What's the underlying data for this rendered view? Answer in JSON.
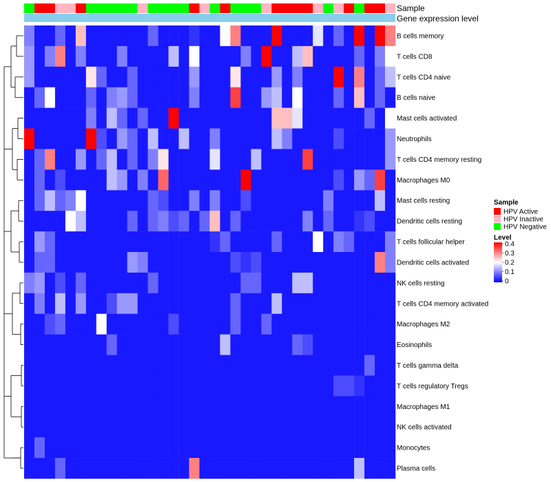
{
  "chart_data": {
    "type": "heatmap",
    "annotation_tracks": [
      "Sample",
      "Gene expression level"
    ],
    "rows": [
      "B cells memory",
      "T cells CD8",
      "T cells CD4 naive",
      "B cells naive",
      "Mast cells activated",
      "Neutrophils",
      "T cells CD4 memory resting",
      "Macrophages M0",
      "Mast cells resting",
      "Dendritic cells resting",
      "T cells follicular helper",
      "Dendritic cells activated",
      "NK cells resting",
      "T cells CD4 memory activated",
      "Macrophages M2",
      "Eosinophils",
      "T cells gamma delta",
      "T cells regulatory  Tregs",
      "Macrophages M1",
      "NK cells activated",
      "Monocytes",
      "Plasma cells"
    ],
    "column_count": 36,
    "sample_groups": [
      "HPV Negative",
      "HPV Active",
      "HPV Active",
      "HPV Inactive",
      "HPV Inactive",
      "HPV Active",
      "HPV Negative",
      "HPV Negative",
      "HPV Negative",
      "HPV Negative",
      "HPV Negative",
      "HPV Inactive",
      "HPV Negative",
      "HPV Negative",
      "HPV Negative",
      "HPV Negative",
      "HPV Active",
      "HPV Inactive",
      "HPV Negative",
      "HPV Active",
      "HPV Negative",
      "HPV Negative",
      "HPV Negative",
      "HPV Inactive",
      "HPV Active",
      "HPV Active",
      "HPV Active",
      "HPV Active",
      "HPV Inactive",
      "HPV Negative",
      "HPV Inactive",
      "HPV Active",
      "HPV Negative",
      "HPV Active",
      "HPV Active",
      "HPV Inactive"
    ],
    "values": [
      [
        0.1,
        0.02,
        0.02,
        0.08,
        0.02,
        0.25,
        0.02,
        0.02,
        0.02,
        0.02,
        0.02,
        0.02,
        0.08,
        0.02,
        0.02,
        0.02,
        0.04,
        0.02,
        0.02,
        0.2,
        0.3,
        0.02,
        0.02,
        0.02,
        0.4,
        0.02,
        0.02,
        0.02,
        0.18,
        0.02,
        0.08,
        0.02,
        0.4,
        0.02,
        0.4,
        0.3
      ],
      [
        0.12,
        0.02,
        0.1,
        0.3,
        0.02,
        0.1,
        0.02,
        0.02,
        0.02,
        0.1,
        0.02,
        0.02,
        0.02,
        0.02,
        0.15,
        0.02,
        0.2,
        0.02,
        0.02,
        0.02,
        0.02,
        0.1,
        0.02,
        0.4,
        0.02,
        0.02,
        0.15,
        0.25,
        0.02,
        0.02,
        0.02,
        0.02,
        0.08,
        0.02,
        0.1,
        0.2
      ],
      [
        0.12,
        0.02,
        0.02,
        0.02,
        0.02,
        0.02,
        0.22,
        0.08,
        0.02,
        0.02,
        0.08,
        0.02,
        0.02,
        0.02,
        0.02,
        0.02,
        0.12,
        0.02,
        0.02,
        0.02,
        0.22,
        0.02,
        0.02,
        0.02,
        0.12,
        0.02,
        0.1,
        0.02,
        0.02,
        0.02,
        0.4,
        0.02,
        0.3,
        0.02,
        0.08,
        0.15
      ],
      [
        0.02,
        0.08,
        0.2,
        0.02,
        0.02,
        0.02,
        0.08,
        0.02,
        0.1,
        0.12,
        0.08,
        0.02,
        0.02,
        0.02,
        0.02,
        0.02,
        0.1,
        0.02,
        0.02,
        0.02,
        0.35,
        0.02,
        0.02,
        0.12,
        0.15,
        0.02,
        0.2,
        0.02,
        0.02,
        0.02,
        0.08,
        0.02,
        0.25,
        0.02,
        0.08,
        0.02
      ],
      [
        0.02,
        0.02,
        0.02,
        0.02,
        0.02,
        0.02,
        0.1,
        0.02,
        0.15,
        0.08,
        0.02,
        0.08,
        0.02,
        0.02,
        0.4,
        0.02,
        0.02,
        0.02,
        0.02,
        0.02,
        0.02,
        0.02,
        0.02,
        0.02,
        0.25,
        0.25,
        0.18,
        0.02,
        0.02,
        0.02,
        0.02,
        0.02,
        0.02,
        0.08,
        0.02,
        0.2
      ],
      [
        0.4,
        0.02,
        0.02,
        0.02,
        0.02,
        0.02,
        0.4,
        0.06,
        0.02,
        0.12,
        0.08,
        0.02,
        0.15,
        0.02,
        0.02,
        0.15,
        0.02,
        0.02,
        0.1,
        0.02,
        0.02,
        0.02,
        0.02,
        0.02,
        0.15,
        0.1,
        0.02,
        0.02,
        0.02,
        0.02,
        0.06,
        0.02,
        0.02,
        0.02,
        0.02,
        0.12
      ],
      [
        0.02,
        0.08,
        0.3,
        0.02,
        0.02,
        0.12,
        0.02,
        0.08,
        0.15,
        0.02,
        0.08,
        0.02,
        0.1,
        0.22,
        0.02,
        0.02,
        0.02,
        0.02,
        0.18,
        0.02,
        0.02,
        0.02,
        0.15,
        0.02,
        0.02,
        0.02,
        0.02,
        0.35,
        0.02,
        0.02,
        0.02,
        0.02,
        0.02,
        0.02,
        0.02,
        0.12
      ],
      [
        0.02,
        0.08,
        0.02,
        0.06,
        0.02,
        0.02,
        0.02,
        0.02,
        0.15,
        0.12,
        0.02,
        0.1,
        0.02,
        0.32,
        0.02,
        0.02,
        0.02,
        0.02,
        0.02,
        0.02,
        0.02,
        0.4,
        0.02,
        0.02,
        0.02,
        0.02,
        0.02,
        0.02,
        0.02,
        0.02,
        0.06,
        0.02,
        0.12,
        0.08,
        0.35,
        0.02
      ],
      [
        0.02,
        0.08,
        0.15,
        0.08,
        0.1,
        0.2,
        0.02,
        0.02,
        0.02,
        0.02,
        0.02,
        0.02,
        0.08,
        0.06,
        0.02,
        0.02,
        0.1,
        0.02,
        0.1,
        0.02,
        0.02,
        0.06,
        0.02,
        0.02,
        0.02,
        0.02,
        0.02,
        0.02,
        0.02,
        0.1,
        0.02,
        0.02,
        0.02,
        0.02,
        0.15,
        0.02
      ],
      [
        0.02,
        0.02,
        0.02,
        0.02,
        0.2,
        0.15,
        0.02,
        0.02,
        0.02,
        0.02,
        0.08,
        0.02,
        0.08,
        0.1,
        0.06,
        0.08,
        0.02,
        0.08,
        0.25,
        0.02,
        0.08,
        0.02,
        0.02,
        0.02,
        0.02,
        0.02,
        0.02,
        0.1,
        0.02,
        0.08,
        0.02,
        0.02,
        0.04,
        0.06,
        0.02,
        0.02
      ],
      [
        0.02,
        0.12,
        0.08,
        0.02,
        0.02,
        0.02,
        0.02,
        0.02,
        0.02,
        0.02,
        0.02,
        0.02,
        0.02,
        0.02,
        0.02,
        0.02,
        0.02,
        0.02,
        0.04,
        0.08,
        0.02,
        0.02,
        0.02,
        0.02,
        0.08,
        0.02,
        0.02,
        0.02,
        0.2,
        0.02,
        0.1,
        0.08,
        0.02,
        0.02,
        0.02,
        0.1
      ],
      [
        0.02,
        0.08,
        0.08,
        0.02,
        0.02,
        0.02,
        0.02,
        0.02,
        0.02,
        0.02,
        0.12,
        0.1,
        0.02,
        0.02,
        0.02,
        0.02,
        0.02,
        0.02,
        0.02,
        0.02,
        0.06,
        0.04,
        0.06,
        0.02,
        0.02,
        0.02,
        0.02,
        0.02,
        0.02,
        0.02,
        0.02,
        0.02,
        0.02,
        0.02,
        0.3,
        0.1
      ],
      [
        0.1,
        0.12,
        0.02,
        0.06,
        0.02,
        0.08,
        0.02,
        0.02,
        0.02,
        0.02,
        0.02,
        0.02,
        0.08,
        0.02,
        0.02,
        0.02,
        0.02,
        0.02,
        0.02,
        0.02,
        0.02,
        0.08,
        0.08,
        0.02,
        0.02,
        0.02,
        0.15,
        0.15,
        0.02,
        0.02,
        0.02,
        0.02,
        0.02,
        0.02,
        0.02,
        0.02
      ],
      [
        0.02,
        0.1,
        0.02,
        0.15,
        0.02,
        0.12,
        0.02,
        0.02,
        0.06,
        0.12,
        0.12,
        0.02,
        0.02,
        0.02,
        0.02,
        0.02,
        0.02,
        0.02,
        0.02,
        0.02,
        0.08,
        0.02,
        0.02,
        0.02,
        0.15,
        0.02,
        0.02,
        0.02,
        0.02,
        0.02,
        0.02,
        0.02,
        0.02,
        0.02,
        0.02,
        0.02
      ],
      [
        0.02,
        0.02,
        0.06,
        0.08,
        0.02,
        0.02,
        0.02,
        0.2,
        0.02,
        0.02,
        0.02,
        0.02,
        0.02,
        0.02,
        0.06,
        0.02,
        0.02,
        0.02,
        0.02,
        0.02,
        0.08,
        0.02,
        0.02,
        0.08,
        0.02,
        0.02,
        0.02,
        0.02,
        0.02,
        0.02,
        0.02,
        0.02,
        0.02,
        0.02,
        0.02,
        0.02
      ],
      [
        0.02,
        0.02,
        0.02,
        0.02,
        0.02,
        0.02,
        0.02,
        0.02,
        0.08,
        0.02,
        0.02,
        0.02,
        0.02,
        0.02,
        0.02,
        0.02,
        0.02,
        0.02,
        0.02,
        0.15,
        0.02,
        0.02,
        0.02,
        0.02,
        0.02,
        0.02,
        0.08,
        0.06,
        0.02,
        0.02,
        0.02,
        0.02,
        0.02,
        0.02,
        0.02,
        0.02
      ],
      [
        0.02,
        0.02,
        0.02,
        0.02,
        0.02,
        0.02,
        0.02,
        0.02,
        0.02,
        0.02,
        0.02,
        0.02,
        0.02,
        0.02,
        0.02,
        0.02,
        0.02,
        0.02,
        0.02,
        0.02,
        0.02,
        0.02,
        0.02,
        0.02,
        0.02,
        0.02,
        0.02,
        0.02,
        0.02,
        0.02,
        0.02,
        0.02,
        0.02,
        0.08,
        0.02,
        0.02
      ],
      [
        0.02,
        0.02,
        0.02,
        0.02,
        0.02,
        0.02,
        0.02,
        0.02,
        0.02,
        0.02,
        0.02,
        0.02,
        0.02,
        0.02,
        0.02,
        0.02,
        0.02,
        0.02,
        0.02,
        0.02,
        0.02,
        0.02,
        0.02,
        0.02,
        0.02,
        0.02,
        0.02,
        0.02,
        0.02,
        0.02,
        0.06,
        0.06,
        0.04,
        0.02,
        0.02,
        0.02
      ],
      [
        0.02,
        0.02,
        0.02,
        0.02,
        0.02,
        0.02,
        0.02,
        0.02,
        0.02,
        0.02,
        0.02,
        0.02,
        0.02,
        0.02,
        0.02,
        0.02,
        0.02,
        0.02,
        0.02,
        0.02,
        0.02,
        0.02,
        0.02,
        0.02,
        0.02,
        0.02,
        0.02,
        0.02,
        0.02,
        0.02,
        0.02,
        0.02,
        0.02,
        0.02,
        0.02,
        0.02
      ],
      [
        0.02,
        0.02,
        0.02,
        0.02,
        0.02,
        0.02,
        0.02,
        0.02,
        0.02,
        0.02,
        0.02,
        0.02,
        0.02,
        0.02,
        0.02,
        0.02,
        0.02,
        0.02,
        0.02,
        0.02,
        0.02,
        0.02,
        0.02,
        0.02,
        0.02,
        0.02,
        0.02,
        0.02,
        0.02,
        0.02,
        0.02,
        0.02,
        0.02,
        0.02,
        0.02,
        0.02
      ],
      [
        0.02,
        0.08,
        0.02,
        0.02,
        0.02,
        0.02,
        0.02,
        0.02,
        0.02,
        0.02,
        0.02,
        0.02,
        0.02,
        0.02,
        0.02,
        0.02,
        0.02,
        0.02,
        0.02,
        0.02,
        0.02,
        0.02,
        0.02,
        0.02,
        0.02,
        0.02,
        0.02,
        0.02,
        0.02,
        0.02,
        0.02,
        0.02,
        0.02,
        0.02,
        0.02,
        0.02
      ],
      [
        0.02,
        0.02,
        0.02,
        0.08,
        0.02,
        0.02,
        0.02,
        0.02,
        0.02,
        0.02,
        0.02,
        0.02,
        0.02,
        0.02,
        0.02,
        0.02,
        0.3,
        0.02,
        0.02,
        0.02,
        0.02,
        0.02,
        0.02,
        0.02,
        0.02,
        0.02,
        0.02,
        0.02,
        0.02,
        0.02,
        0.02,
        0.02,
        0.15,
        0.02,
        0.02,
        0.02
      ]
    ],
    "legend": {
      "sample_title": "Sample",
      "sample_entries": [
        {
          "label": "HPV Active",
          "color": "#ff0000"
        },
        {
          "label": "HPV Inactive",
          "color": "#ffb6c1"
        },
        {
          "label": "HPV Negative",
          "color": "#00ff00"
        }
      ],
      "level_title": "Level",
      "level_ticks": [
        "0.4",
        "0.3",
        "0.2",
        "0.1",
        "0"
      ],
      "level_range": [
        0,
        0.4
      ],
      "level_colors": [
        "#0000ff",
        "#ffffff",
        "#ff0000"
      ]
    },
    "gene_expression_color": "#87ceeb"
  }
}
